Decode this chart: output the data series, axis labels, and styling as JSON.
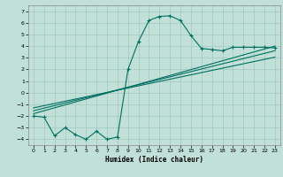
{
  "xlabel": "Humidex (Indice chaleur)",
  "bg_color": "#c0e0d8",
  "grid_color": "#a0c8c0",
  "line_color": "#007060",
  "xlim": [
    -0.5,
    23.5
  ],
  "ylim": [
    -4.5,
    7.5
  ],
  "xticks": [
    0,
    1,
    2,
    3,
    4,
    5,
    6,
    7,
    8,
    9,
    10,
    11,
    12,
    13,
    14,
    15,
    16,
    17,
    18,
    19,
    20,
    21,
    22,
    23
  ],
  "yticks": [
    -4,
    -3,
    -2,
    -1,
    0,
    1,
    2,
    3,
    4,
    5,
    6,
    7
  ],
  "curve1_x": [
    0,
    1,
    2,
    3,
    4,
    5,
    6,
    7,
    8,
    9,
    10,
    11,
    12,
    13,
    14,
    15,
    16,
    17,
    18,
    19,
    20,
    21,
    22,
    23
  ],
  "curve1_y": [
    -2.0,
    -2.1,
    -3.7,
    -3.0,
    -3.6,
    -4.0,
    -3.3,
    -4.0,
    -3.8,
    2.0,
    4.4,
    6.2,
    6.55,
    6.6,
    6.2,
    4.9,
    3.8,
    3.7,
    3.6,
    3.9,
    3.9,
    3.9,
    3.9,
    3.85
  ],
  "line1_x": [
    0,
    23
  ],
  "line1_y": [
    -1.55,
    3.6
  ],
  "line2_x": [
    0,
    23
  ],
  "line2_y": [
    -1.3,
    3.05
  ],
  "line3_x": [
    0,
    23
  ],
  "line3_y": [
    -1.8,
    4.0
  ]
}
